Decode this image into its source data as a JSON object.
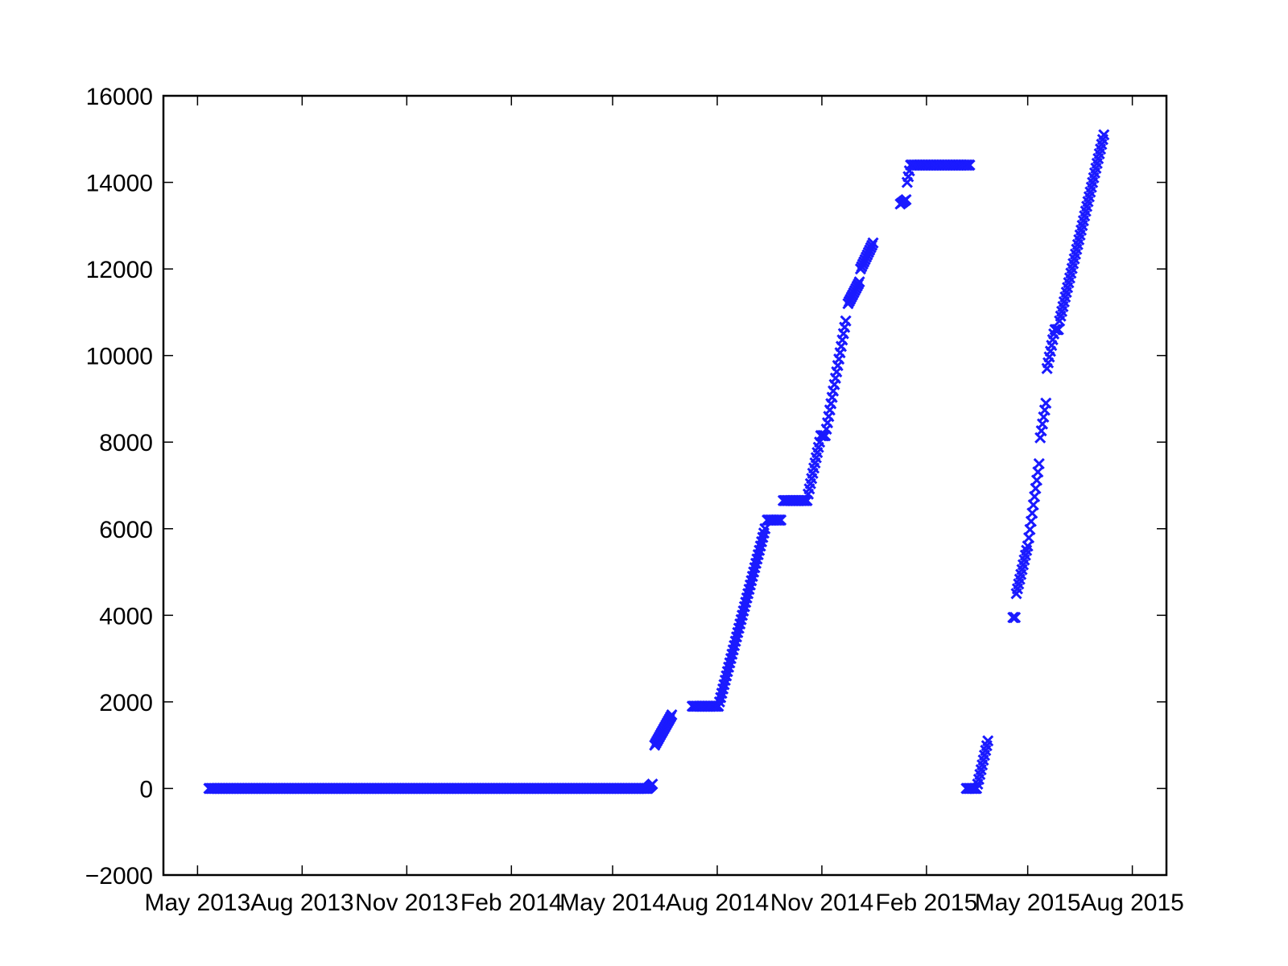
{
  "chart_data": {
    "type": "scatter",
    "marker": "x",
    "marker_color": "#1a1aff",
    "grid": false,
    "legend": "none",
    "xlim": [
      "2013-04-01",
      "2015-08-31"
    ],
    "ylim": [
      -2000,
      16000
    ],
    "x_ticks": [
      {
        "date": "2013-05-01",
        "label": "May 2013"
      },
      {
        "date": "2013-08-01",
        "label": "Aug 2013"
      },
      {
        "date": "2013-11-01",
        "label": "Nov 2013"
      },
      {
        "date": "2014-02-01",
        "label": "Feb 2014"
      },
      {
        "date": "2014-05-01",
        "label": "May 2014"
      },
      {
        "date": "2014-08-01",
        "label": "Aug 2014"
      },
      {
        "date": "2014-11-01",
        "label": "Nov 2014"
      },
      {
        "date": "2015-02-01",
        "label": "Feb 2015"
      },
      {
        "date": "2015-05-01",
        "label": "May 2015"
      },
      {
        "date": "2015-08-01",
        "label": "Aug 2015"
      }
    ],
    "y_ticks": [
      {
        "value": -2000,
        "label": "−2000"
      },
      {
        "value": 0,
        "label": "0"
      },
      {
        "value": 2000,
        "label": "2000"
      },
      {
        "value": 4000,
        "label": "4000"
      },
      {
        "value": 6000,
        "label": "6000"
      },
      {
        "value": 8000,
        "label": "8000"
      },
      {
        "value": 10000,
        "label": "10000"
      },
      {
        "value": 12000,
        "label": "12000"
      },
      {
        "value": 14000,
        "label": "14000"
      },
      {
        "value": 16000,
        "label": "16000"
      }
    ],
    "segments": [
      {
        "start": "2013-05-11",
        "end": "2014-05-31",
        "y_start": 0,
        "y_end": 0
      },
      {
        "start": "2014-06-01",
        "end": "2014-06-05",
        "y_start": 0,
        "y_end": 100
      },
      {
        "start": "2014-06-07",
        "end": "2014-06-22",
        "y_start": 1000,
        "y_end": 1700
      },
      {
        "start": "2014-07-10",
        "end": "2014-08-02",
        "y_start": 1900,
        "y_end": 1900
      },
      {
        "start": "2014-08-03",
        "end": "2014-09-12",
        "y_start": 2000,
        "y_end": 6000
      },
      {
        "start": "2014-09-14",
        "end": "2014-09-26",
        "y_start": 6200,
        "y_end": 6200
      },
      {
        "start": "2014-09-28",
        "end": "2014-10-19",
        "y_start": 6650,
        "y_end": 6650
      },
      {
        "start": "2014-10-20",
        "end": "2014-10-30",
        "y_start": 6800,
        "y_end": 8000
      },
      {
        "start": "2014-10-31",
        "end": "2014-11-04",
        "y_start": 8150,
        "y_end": 8150
      },
      {
        "start": "2014-11-05",
        "end": "2014-11-22",
        "y_start": 8300,
        "y_end": 10800
      },
      {
        "start": "2014-11-24",
        "end": "2014-12-04",
        "y_start": 11200,
        "y_end": 11700
      },
      {
        "start": "2014-12-05",
        "end": "2014-12-16",
        "y_start": 12000,
        "y_end": 12600
      },
      {
        "start": "2015-01-09",
        "end": "2015-01-14",
        "y_start": 13500,
        "y_end": 13600
      },
      {
        "start": "2015-01-15",
        "end": "2015-01-18",
        "y_start": 14000,
        "y_end": 14400
      },
      {
        "start": "2015-01-19",
        "end": "2015-03-11",
        "y_start": 14400,
        "y_end": 14400
      },
      {
        "start": "2015-03-08",
        "end": "2015-03-17",
        "y_start": 0,
        "y_end": 0
      },
      {
        "start": "2015-03-18",
        "end": "2015-03-27",
        "y_start": 100,
        "y_end": 1100
      },
      {
        "start": "2015-04-18",
        "end": "2015-04-20",
        "y_start": 3950,
        "y_end": 3950
      },
      {
        "start": "2015-04-21",
        "end": "2015-04-30",
        "y_start": 4500,
        "y_end": 5500
      },
      {
        "start": "2015-05-01",
        "end": "2015-05-11",
        "y_start": 5600,
        "y_end": 7500
      },
      {
        "start": "2015-05-12",
        "end": "2015-05-17",
        "y_start": 8100,
        "y_end": 8900
      },
      {
        "start": "2015-05-18",
        "end": "2015-05-24",
        "y_start": 9700,
        "y_end": 10500
      },
      {
        "start": "2015-05-25",
        "end": "2015-05-28",
        "y_start": 10600,
        "y_end": 10600
      },
      {
        "start": "2015-05-29",
        "end": "2015-07-07",
        "y_start": 10800,
        "y_end": 15100
      }
    ]
  }
}
